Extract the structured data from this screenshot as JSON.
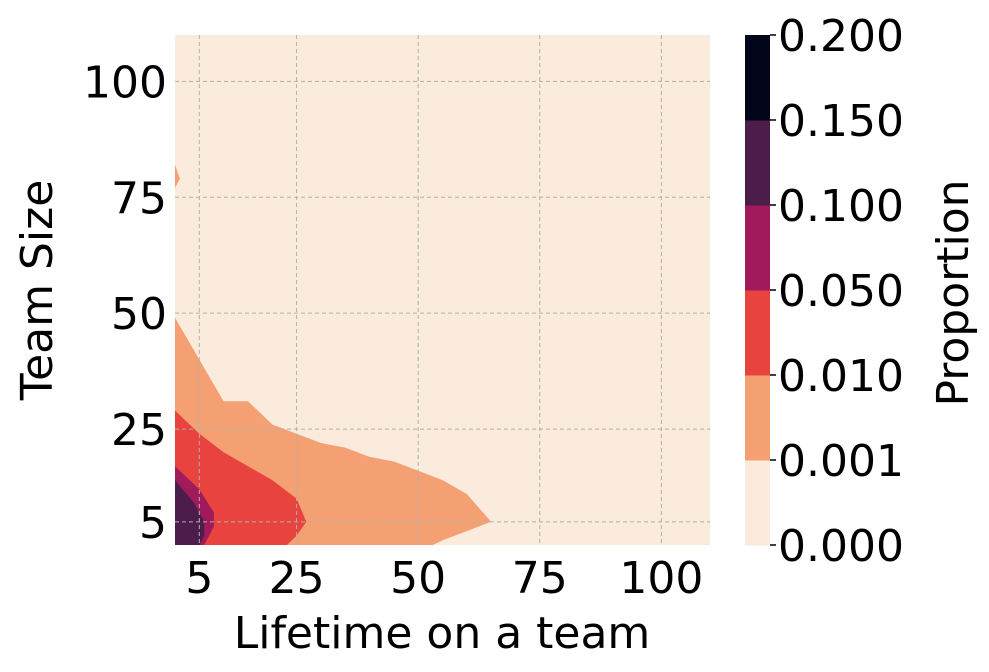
{
  "chart_data": {
    "type": "contour",
    "xlabel": "Lifetime on a team",
    "ylabel": "Team Size",
    "colorbar_label": "Proportion",
    "xlim": [
      0,
      110
    ],
    "ylim": [
      0,
      110
    ],
    "xticks": [
      5,
      25,
      50,
      75,
      100
    ],
    "yticks": [
      5,
      25,
      50,
      75,
      100
    ],
    "grid": true,
    "levels": [
      "0.000",
      "0.001",
      "0.010",
      "0.050",
      "0.100",
      "0.150",
      "0.200"
    ],
    "level_colors": [
      "#faebdd",
      "#f5a073",
      "#e8433f",
      "#a11a5b",
      "#4c1d4b",
      "#03051a"
    ],
    "regions": [
      {
        "level_index": 1,
        "polygon": [
          [
            0,
            0
          ],
          [
            0,
            49
          ],
          [
            5,
            40
          ],
          [
            10,
            31
          ],
          [
            15,
            31
          ],
          [
            17,
            29
          ],
          [
            20,
            26
          ],
          [
            25,
            24
          ],
          [
            30,
            22
          ],
          [
            35,
            21
          ],
          [
            40,
            19
          ],
          [
            45,
            18
          ],
          [
            50,
            16
          ],
          [
            55,
            14
          ],
          [
            60,
            11
          ],
          [
            65,
            5
          ],
          [
            60,
            3
          ],
          [
            55,
            1
          ],
          [
            53,
            0
          ]
        ]
      },
      {
        "level_index": 1,
        "polygon": [
          [
            0,
            77
          ],
          [
            0,
            82
          ],
          [
            1,
            79
          ]
        ]
      },
      {
        "level_index": 2,
        "polygon": [
          [
            0,
            0
          ],
          [
            0,
            29
          ],
          [
            5,
            24
          ],
          [
            10,
            20
          ],
          [
            15,
            17
          ],
          [
            20,
            14
          ],
          [
            25,
            10
          ],
          [
            27,
            5
          ],
          [
            25,
            2
          ],
          [
            23,
            0
          ]
        ]
      },
      {
        "level_index": 3,
        "polygon": [
          [
            0,
            0
          ],
          [
            0,
            17
          ],
          [
            5,
            12
          ],
          [
            8,
            7
          ],
          [
            8,
            4
          ],
          [
            6,
            0
          ]
        ]
      },
      {
        "level_index": 4,
        "polygon": [
          [
            0,
            0
          ],
          [
            0,
            14
          ],
          [
            4,
            9
          ],
          [
            6,
            5
          ],
          [
            6,
            2
          ],
          [
            5,
            0
          ]
        ]
      }
    ]
  }
}
